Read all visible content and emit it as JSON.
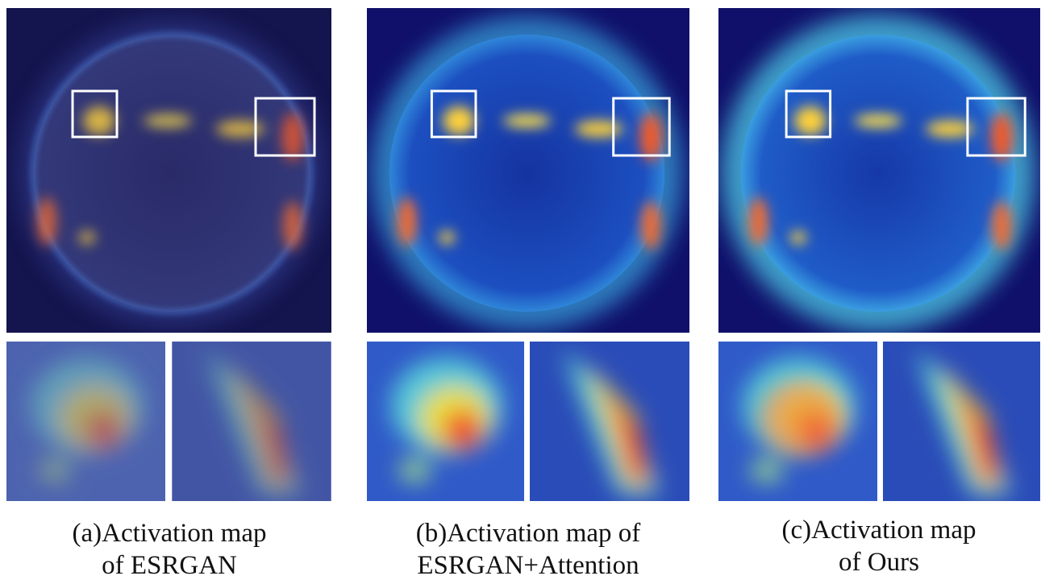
{
  "panels": [
    {
      "caption": [
        "(a)Activation map",
        "of ESRGAN"
      ]
    },
    {
      "caption": [
        "(b)Activation map of",
        "ESRGAN+Attention"
      ]
    },
    {
      "caption": [
        "(c)Activation map",
        "of Ours"
      ]
    }
  ]
}
